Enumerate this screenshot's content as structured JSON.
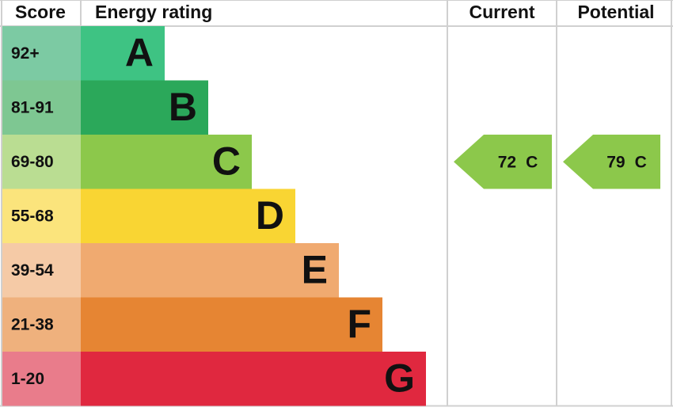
{
  "header": {
    "score": "Score",
    "rating": "Energy rating",
    "current": "Current",
    "potential": "Potential"
  },
  "bands": [
    {
      "score": "92+",
      "letter": "A",
      "color": "#3ec383",
      "score_color": "#7ccaa3"
    },
    {
      "score": "81-91",
      "letter": "B",
      "color": "#2ba85a",
      "score_color": "#7ec792"
    },
    {
      "score": "69-80",
      "letter": "C",
      "color": "#8cc84b",
      "score_color": "#badd92"
    },
    {
      "score": "55-68",
      "letter": "D",
      "color": "#f9d533",
      "score_color": "#fbe47c"
    },
    {
      "score": "39-54",
      "letter": "E",
      "color": "#f0aa70",
      "score_color": "#f5caa6"
    },
    {
      "score": "21-38",
      "letter": "F",
      "color": "#e68533",
      "score_color": "#efb17d"
    },
    {
      "score": "1-20",
      "letter": "G",
      "color": "#e0283f",
      "score_color": "#e97c8b"
    }
  ],
  "current": {
    "value": 72,
    "letter": "C"
  },
  "potential": {
    "value": 79,
    "letter": "C"
  }
}
